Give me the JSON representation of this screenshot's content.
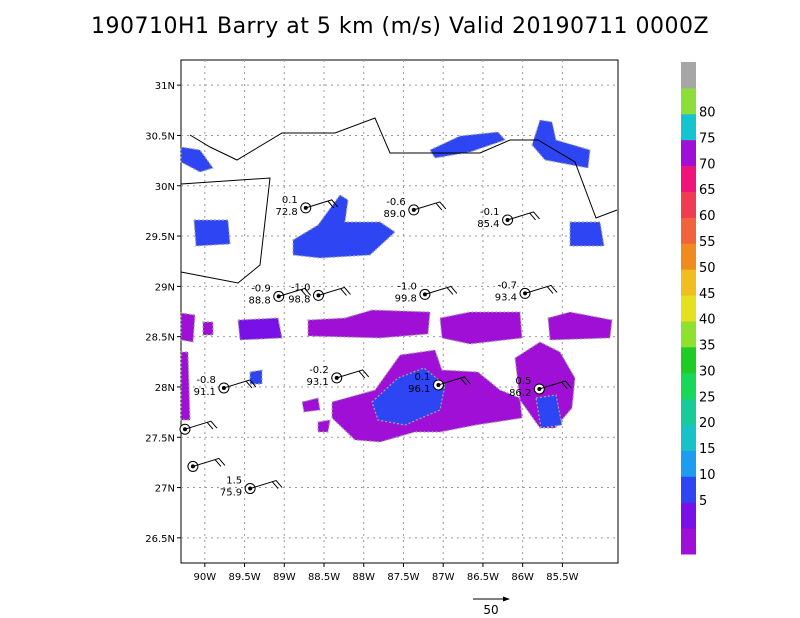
{
  "title": "190710H1 Barry at 5 km (m/s) Valid 20190711 0000Z",
  "colors": {
    "bins": [
      "#a00fd6",
      "#7a10e8",
      "#2d45f2",
      "#1e9cf0",
      "#18c3c8",
      "#18cc98",
      "#18d85a",
      "#1fcc24",
      "#8ee12e",
      "#e6e11e",
      "#f0be1e",
      "#f08c1e",
      "#f0643c",
      "#f03c50",
      "#f0147a",
      "#a00fd6",
      "#16c4cf",
      "#8ede3a",
      "#a6a6a6"
    ]
  },
  "map": {
    "lon_range": [
      -90.3,
      -84.8
    ],
    "lat_range": [
      26.25,
      31.25
    ],
    "lat_ticks": [
      {
        "v": 31,
        "label": "31N"
      },
      {
        "v": 30.5,
        "label": "30.5N"
      },
      {
        "v": 30,
        "label": "30N"
      },
      {
        "v": 29.5,
        "label": "29.5N"
      },
      {
        "v": 29,
        "label": "29N"
      },
      {
        "v": 28.5,
        "label": "28.5N"
      },
      {
        "v": 28,
        "label": "28N"
      },
      {
        "v": 27.5,
        "label": "27.5N"
      },
      {
        "v": 27,
        "label": "27N"
      },
      {
        "v": 26.5,
        "label": "26.5N"
      }
    ],
    "lon_ticks": [
      {
        "v": -90,
        "label": "90W"
      },
      {
        "v": -89.5,
        "label": "89.5W"
      },
      {
        "v": -89,
        "label": "89W"
      },
      {
        "v": -88.5,
        "label": "88.5W"
      },
      {
        "v": -88,
        "label": "88W"
      },
      {
        "v": -87.5,
        "label": "87.5W"
      },
      {
        "v": -87,
        "label": "87W"
      },
      {
        "v": -86.5,
        "label": "86.5W"
      },
      {
        "v": -86,
        "label": "86W"
      },
      {
        "v": -85.5,
        "label": "85.5W"
      }
    ],
    "stations": [
      {
        "lon": -88.73,
        "lat": 29.78,
        "top": "0.1",
        "bottom": "72.8"
      },
      {
        "lon": -87.37,
        "lat": 29.76,
        "top": "-0.6",
        "bottom": "89.0"
      },
      {
        "lon": -86.19,
        "lat": 29.66,
        "top": "-0.1",
        "bottom": "85.4"
      },
      {
        "lon": -89.07,
        "lat": 28.9,
        "top": "-0.9",
        "bottom": "88.8"
      },
      {
        "lon": -88.57,
        "lat": 28.91,
        "top": "-1.0",
        "bottom": "98.8"
      },
      {
        "lon": -87.23,
        "lat": 28.92,
        "top": "-1.0",
        "bottom": "99.8"
      },
      {
        "lon": -85.97,
        "lat": 28.93,
        "top": "-0.7",
        "bottom": "93.4"
      },
      {
        "lon": -89.76,
        "lat": 27.99,
        "top": "-0.8",
        "bottom": "91.1"
      },
      {
        "lon": -88.34,
        "lat": 28.09,
        "top": "-0.2",
        "bottom": "93.1"
      },
      {
        "lon": -87.06,
        "lat": 28.02,
        "top": "0.1",
        "bottom": "96.1"
      },
      {
        "lon": -85.79,
        "lat": 27.98,
        "top": "0.5",
        "bottom": "86.2"
      },
      {
        "lon": -90.25,
        "lat": 27.58,
        "top": "",
        "bottom": ""
      },
      {
        "lon": -90.15,
        "lat": 27.21,
        "top": "",
        "bottom": ""
      },
      {
        "lon": -89.43,
        "lat": 26.99,
        "top": "1.5",
        "bottom": "75.9"
      }
    ]
  },
  "legend": {
    "labels": [
      "5",
      "10",
      "15",
      "20",
      "25",
      "30",
      "35",
      "40",
      "45",
      "50",
      "55",
      "60",
      "65",
      "70",
      "75",
      "80"
    ]
  },
  "reference_vector": {
    "label": "50"
  }
}
